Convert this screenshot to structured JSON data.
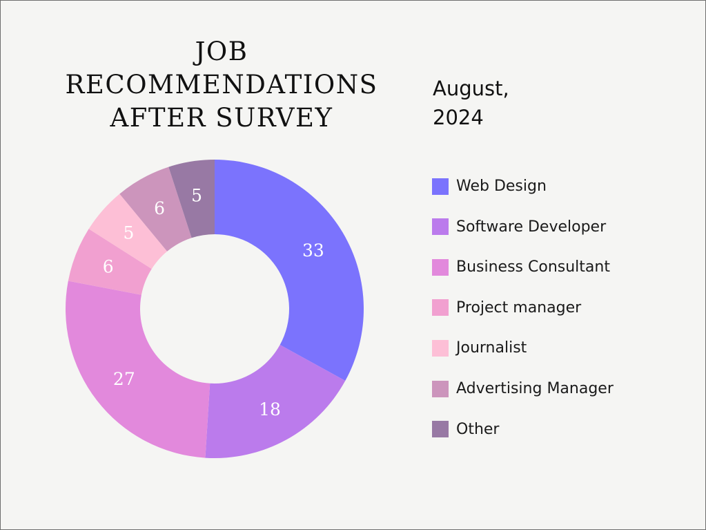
{
  "title": {
    "line1": "JOB",
    "line2": "RECOMMENDATIONS",
    "line3": "AFTER SURVEY"
  },
  "date": {
    "line1": "August,",
    "line2": "2024"
  },
  "chart_data": {
    "type": "pie",
    "donut": true,
    "title": "JOB RECOMMENDATIONS AFTER SURVEY",
    "subtitle": "August, 2024",
    "categories": [
      "Web Design",
      "Software Developer",
      "Business Consultant",
      "Project manager",
      "Journalist",
      "Advertising Manager",
      "Other"
    ],
    "values": [
      33,
      18,
      27,
      6,
      5,
      6,
      5
    ],
    "colors": [
      "#7b73fd",
      "#bb7bec",
      "#e289dc",
      "#f1a0d0",
      "#fdbfd6",
      "#cc95bc",
      "#9879a4"
    ],
    "legend_position": "right",
    "data_labels": true
  }
}
